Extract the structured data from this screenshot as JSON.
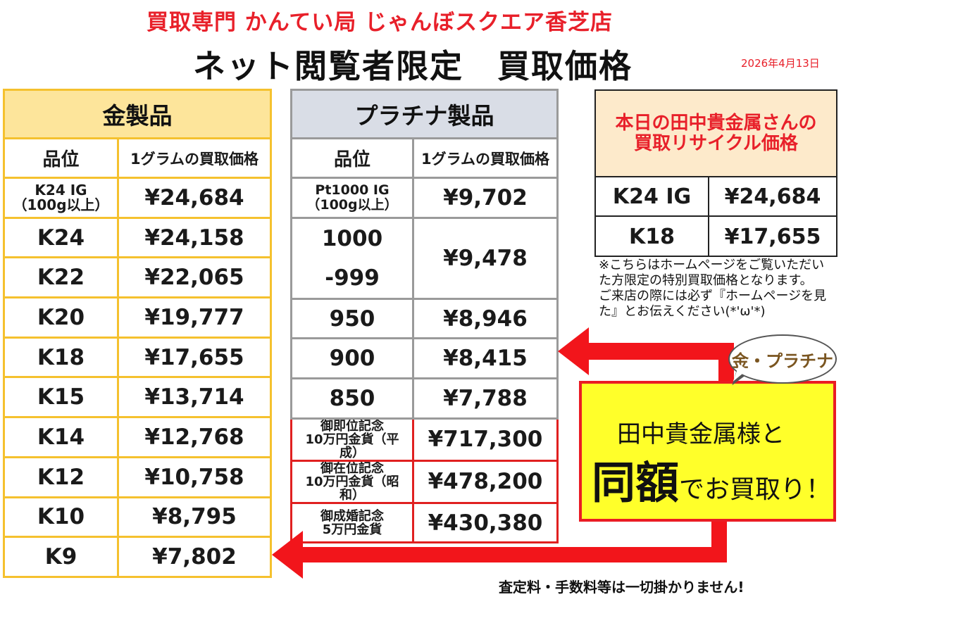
{
  "header": {
    "shop_name": "買取専門 かんてい局 じゃんぼスクエア香芝店",
    "page_title": "ネット閲覧者限定　買取価格",
    "date": "2026年4月13日"
  },
  "gold": {
    "title": "金製品",
    "col_grade": "品位",
    "col_price": "1グラムの買取価格",
    "rows": [
      {
        "grade_line1": "K24 IG",
        "grade_line2": "（100g以上）",
        "price": "¥24,684"
      },
      {
        "grade": "K24",
        "price": "¥24,158"
      },
      {
        "grade": "K22",
        "price": "¥22,065"
      },
      {
        "grade": "K20",
        "price": "¥19,777"
      },
      {
        "grade": "K18",
        "price": "¥17,655"
      },
      {
        "grade": "K15",
        "price": "¥13,714"
      },
      {
        "grade": "K14",
        "price": "¥12,768"
      },
      {
        "grade": "K12",
        "price": "¥10,758"
      },
      {
        "grade": "K10",
        "price": "¥8,795"
      },
      {
        "grade": "K9",
        "price": "¥7,802"
      }
    ]
  },
  "platinum": {
    "title": "プラチナ製品",
    "col_grade": "品位",
    "col_price": "1グラムの買取価格",
    "row_ig": {
      "grade_line1": "Pt1000 IG",
      "grade_line2": "（100g以上）",
      "price": "¥9,702"
    },
    "row_1000": {
      "grade_line1": "1000",
      "grade_line2": "-999",
      "price": "¥9,478"
    },
    "rows": [
      {
        "grade": "950",
        "price": "¥8,946"
      },
      {
        "grade": "900",
        "price": "¥8,415"
      },
      {
        "grade": "850",
        "price": "¥7,788"
      }
    ],
    "coins": [
      {
        "line1": "御即位記念",
        "line2": "10万円金貨（平",
        "line3": "成）",
        "price": "¥717,300"
      },
      {
        "line1": "御在位記念",
        "line2": "10万円金貨（昭",
        "line3": "和）",
        "price": "¥478,200"
      },
      {
        "line1": "御成婚記念",
        "line2": "5万円金貨",
        "price": "¥430,380"
      }
    ]
  },
  "tanaka": {
    "title_line1": "本日の田中貴金属さんの",
    "title_line2": "買取リサイクル価格",
    "rows": [
      {
        "grade": "K24 IG",
        "price": "¥24,684"
      },
      {
        "grade": "K18",
        "price": "¥17,655"
      }
    ]
  },
  "notes": {
    "line1": "※こちらはホームページをご覧いただいた方限定の特別買取価格となります。",
    "line2": "ご来店の際には必ず『ホームページを見た』とお伝えください(*'ω'*)"
  },
  "promo": {
    "bubble": "金・プラチナ",
    "line1": "田中貴金属様と",
    "big": "同額",
    "rest": "でお買取り！"
  },
  "footer": "査定料・手数料等は一切掛かりません!",
  "colors": {
    "accent_red": "#e8202a",
    "gold_border": "#f5c12e",
    "gold_header": "#fde59b",
    "plat_header": "#d9dde6",
    "promo_yellow": "#ffff2a"
  }
}
